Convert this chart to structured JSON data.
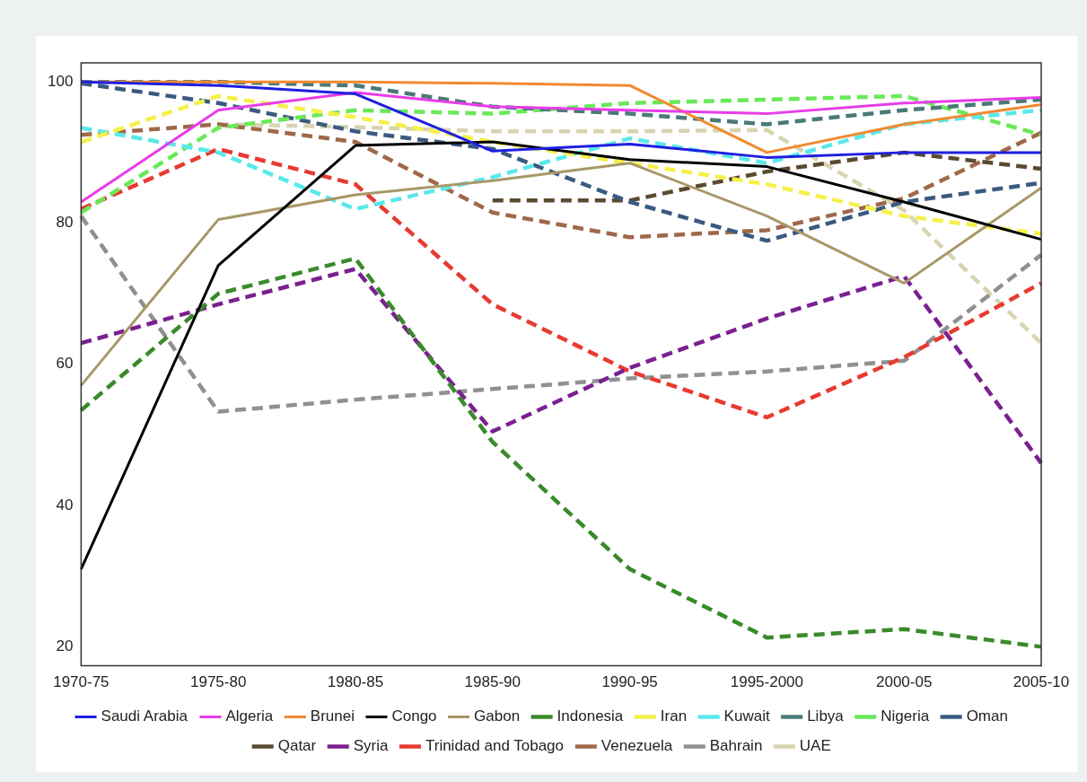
{
  "chart_data": {
    "type": "line",
    "categories": [
      "1970-75",
      "1975-80",
      "1980-85",
      "1985-90",
      "1990-95",
      "1995-2000",
      "2000-05",
      "2005-10"
    ],
    "ylim": [
      17.3,
      102.7
    ],
    "yticks": [
      20,
      40,
      60,
      80,
      100
    ],
    "grid": false,
    "legend": "bottom",
    "marker": "none",
    "series": [
      {
        "name": "Saudi Arabia",
        "color": "#1f1fe0",
        "line_style": "solid",
        "values": [
          100,
          99.5,
          98.3,
          90.2,
          91.2,
          89.3,
          90,
          90
        ]
      },
      {
        "name": "Algeria",
        "color": "#e83ce8",
        "line_style": "solid",
        "values": [
          83,
          96,
          98.5,
          96.5,
          96,
          95.5,
          97,
          97.8
        ]
      },
      {
        "name": "Brunei",
        "color": "#f08a30",
        "line_style": "solid",
        "values": [
          100,
          100,
          100,
          99.8,
          99.5,
          90,
          94,
          96.8
        ]
      },
      {
        "name": "Congo",
        "color": "#000000",
        "line_style": "solid",
        "values": [
          31,
          74,
          91,
          91.5,
          89,
          88,
          83,
          77.7
        ]
      },
      {
        "name": "Gabon",
        "color": "#a89868",
        "line_style": "solid",
        "values": [
          57,
          80.5,
          84,
          86,
          88.5,
          81,
          71.5,
          85
        ]
      },
      {
        "name": "Indonesia",
        "color": "#3a8a2a",
        "line_style": "dashed",
        "values": [
          53.5,
          70,
          75,
          49,
          31,
          21.3,
          22.5,
          20
        ]
      },
      {
        "name": "Iran",
        "color": "#f5f04a",
        "line_style": "dashed",
        "values": [
          91.5,
          98,
          95,
          91.5,
          88.5,
          85.5,
          81,
          78.5
        ]
      },
      {
        "name": "Kuwait",
        "color": "#5ae8ea",
        "line_style": "dashed",
        "values": [
          93.5,
          90,
          82,
          86.5,
          92,
          88.5,
          94,
          96
        ]
      },
      {
        "name": "Libya",
        "color": "#4a7a78",
        "line_style": "dashed",
        "values": [
          100,
          100,
          99.5,
          96.5,
          95.5,
          94,
          96,
          97.5
        ]
      },
      {
        "name": "Nigeria",
        "color": "#6ae85a",
        "line_style": "dashed",
        "values": [
          81.5,
          93.5,
          96,
          95.5,
          97,
          97.5,
          98,
          92.5
        ]
      },
      {
        "name": "Oman",
        "color": "#3a5a80",
        "line_style": "dashed",
        "values": [
          99.8,
          97,
          93,
          90.5,
          83,
          77.5,
          83,
          85.7
        ]
      },
      {
        "name": "Qatar",
        "color": "#5a4a30",
        "line_style": "dashed",
        "values": [
          null,
          null,
          null,
          83.2,
          83.2,
          87.3,
          90,
          87.7
        ]
      },
      {
        "name": "Syria",
        "color": "#7a2090",
        "line_style": "dashed",
        "values": [
          63,
          68.5,
          73.5,
          50.5,
          59.5,
          66.5,
          72.5,
          46
        ]
      },
      {
        "name": "Trinidad and Tobago",
        "color": "#e83a30",
        "line_style": "dashed",
        "values": [
          82,
          90.5,
          85.5,
          68.5,
          59,
          52.5,
          61,
          71.5
        ]
      },
      {
        "name": "Venezuela",
        "color": "#a0684a",
        "line_style": "dashed",
        "values": [
          92.5,
          94,
          91.5,
          81.5,
          78,
          79,
          83.5,
          92.8
        ]
      },
      {
        "name": "Bahrain",
        "color": "#909090",
        "line_style": "dashed",
        "values": [
          81,
          53.3,
          55,
          56.5,
          58,
          59,
          60.5,
          75.5
        ]
      },
      {
        "name": "UAE",
        "color": "#d8d4b0",
        "line_style": "dashed",
        "values": [
          null,
          94,
          93.6,
          93,
          93,
          93.2,
          81.8,
          63
        ]
      }
    ]
  }
}
